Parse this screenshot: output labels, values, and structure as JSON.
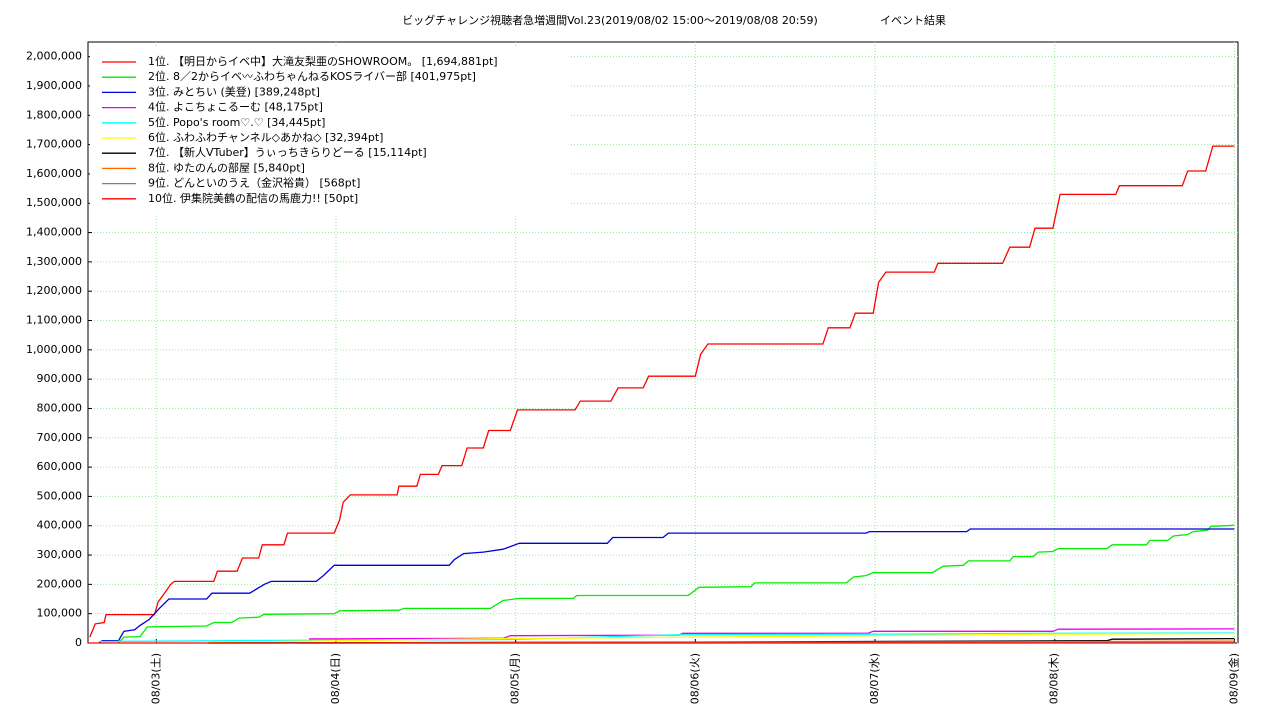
{
  "chart_data": {
    "type": "line",
    "title": "ビッグチャレンジ視聴者急増週間Vol.23(2019/08/02 15:00〜2019/08/08 20:59)",
    "subtitle": "イベント結果",
    "xlim": [
      2.62,
      9.02
    ],
    "xticks": [
      {
        "value": 3,
        "label": "08/03(土)"
      },
      {
        "value": 4,
        "label": "08/04(日)"
      },
      {
        "value": 5,
        "label": "08/05(月)"
      },
      {
        "value": 6,
        "label": "08/06(火)"
      },
      {
        "value": 7,
        "label": "08/07(水)"
      },
      {
        "value": 8,
        "label": "08/08(木)"
      },
      {
        "value": 9,
        "label": "08/09(金)"
      }
    ],
    "ylim": [
      0,
      2050000
    ],
    "yticks": [
      0,
      {
        "value": 100000,
        "label": "100,000"
      },
      {
        "value": 200000,
        "label": "200,000"
      },
      {
        "value": 300000,
        "label": "300,000"
      },
      {
        "value": 400000,
        "label": "400,000"
      },
      {
        "value": 500000,
        "label": "500,000"
      },
      {
        "value": 600000,
        "label": "600,000"
      },
      {
        "value": 700000,
        "label": "700,000"
      },
      {
        "value": 800000,
        "label": "800,000"
      },
      {
        "value": 900000,
        "label": "900,000"
      },
      {
        "value": 1000000,
        "label": "1,000,000"
      },
      {
        "value": 1100000,
        "label": "1,100,000"
      },
      {
        "value": 1200000,
        "label": "1,200,000"
      },
      {
        "value": 1300000,
        "label": "1,300,000"
      },
      {
        "value": 1400000,
        "label": "1,400,000"
      },
      {
        "value": 1500000,
        "label": "1,500,000"
      },
      {
        "value": 1600000,
        "label": "1,600,000"
      },
      {
        "value": 1700000,
        "label": "1,700,000"
      },
      {
        "value": 1800000,
        "label": "1,800,000"
      },
      {
        "value": 1900000,
        "label": "1,900,000"
      },
      {
        "value": 2000000,
        "label": "2,000,000"
      }
    ],
    "grid": true,
    "legend": "upper-left",
    "series": [
      {
        "name": "1位. 【明日からイベ中】大滝友梨亜のSHOWROOM。 [1,694,881pt]",
        "color": "#ff0000",
        "x": [
          2.63,
          2.66,
          2.71,
          2.72,
          2.99,
          3.01,
          3.04,
          3.08,
          3.1,
          3.32,
          3.34,
          3.45,
          3.48,
          3.57,
          3.59,
          3.71,
          3.73,
          3.99,
          4.02,
          4.04,
          4.08,
          4.34,
          4.35,
          4.45,
          4.47,
          4.57,
          4.59,
          4.7,
          4.73,
          4.82,
          4.85,
          4.97,
          5.01,
          5.33,
          5.36,
          5.53,
          5.57,
          5.71,
          5.74,
          6.0,
          6.03,
          6.07,
          6.71,
          6.74,
          6.86,
          6.89,
          6.99,
          7.02,
          7.06,
          7.33,
          7.35,
          7.71,
          7.75,
          7.86,
          7.89,
          7.99,
          8.03,
          8.34,
          8.36,
          8.71,
          8.74,
          8.84,
          8.88,
          9.0
        ],
        "values": [
          20000,
          65000,
          70000,
          97000,
          97000,
          140000,
          165000,
          200000,
          210000,
          210000,
          245000,
          245000,
          290000,
          290000,
          335000,
          335000,
          375000,
          375000,
          420000,
          480000,
          505000,
          505000,
          535000,
          535000,
          575000,
          575000,
          605000,
          605000,
          665000,
          665000,
          725000,
          725000,
          795000,
          795000,
          825000,
          825000,
          870000,
          870000,
          910000,
          910000,
          985000,
          1020000,
          1020000,
          1075000,
          1075000,
          1125000,
          1125000,
          1230000,
          1265000,
          1265000,
          1295000,
          1295000,
          1350000,
          1350000,
          1415000,
          1415000,
          1530000,
          1530000,
          1560000,
          1560000,
          1610000,
          1610000,
          1695000,
          1695000
        ]
      },
      {
        "name": "2位. 8／2からイベ〰ふわちゃんねるKOSライバー部 [401,975pt]",
        "color": "#00ee00",
        "x": [
          2.79,
          2.82,
          2.91,
          2.95,
          3.28,
          3.32,
          3.42,
          3.46,
          3.57,
          3.6,
          3.99,
          4.02,
          4.35,
          4.38,
          4.86,
          4.89,
          4.93,
          5.02,
          5.32,
          5.34,
          5.96,
          6.02,
          6.31,
          6.33,
          6.84,
          6.88,
          6.95,
          6.99,
          7.32,
          7.38,
          7.49,
          7.52,
          7.75,
          7.77,
          7.88,
          7.91,
          7.99,
          8.02,
          8.29,
          8.32,
          8.51,
          8.53,
          8.63,
          8.66,
          8.74,
          8.77,
          8.85,
          8.87,
          8.96,
          9.0
        ],
        "values": [
          0,
          20000,
          22000,
          55000,
          58000,
          70000,
          70000,
          85000,
          88000,
          98000,
          100000,
          110000,
          112000,
          118000,
          118000,
          130000,
          145000,
          152000,
          152000,
          162000,
          162000,
          190000,
          192000,
          205000,
          205000,
          225000,
          230000,
          240000,
          240000,
          262000,
          265000,
          280000,
          280000,
          295000,
          295000,
          310000,
          312000,
          322000,
          322000,
          335000,
          335000,
          350000,
          350000,
          365000,
          370000,
          380000,
          385000,
          398000,
          400000,
          402000
        ]
      },
      {
        "name": "3位. みとちい (美登) [389,248pt]",
        "color": "#0000dd",
        "x": [
          2.68,
          2.7,
          2.79,
          2.82,
          2.88,
          2.91,
          2.96,
          3.02,
          3.07,
          3.28,
          3.31,
          3.52,
          3.6,
          3.64,
          3.89,
          3.93,
          3.99,
          4.63,
          4.66,
          4.71,
          4.82,
          4.93,
          5.02,
          5.51,
          5.54,
          5.82,
          5.85,
          6.95,
          6.97,
          7.51,
          7.53,
          9.0
        ],
        "values": [
          0,
          8000,
          8000,
          40000,
          45000,
          60000,
          80000,
          120000,
          150000,
          150000,
          170000,
          170000,
          200000,
          210000,
          210000,
          230000,
          265000,
          265000,
          285000,
          305000,
          310000,
          320000,
          340000,
          340000,
          360000,
          360000,
          375000,
          375000,
          380000,
          380000,
          389000,
          389000
        ]
      },
      {
        "name": "4位. よこちょこるーむ [48,175pt]",
        "color": "#ee00ee",
        "x": [
          3.85,
          4.93,
          4.97,
          5.91,
          5.93,
          6.96,
          6.99,
          7.99,
          8.02,
          9.0
        ],
        "values": [
          14000,
          16000,
          25000,
          27000,
          33000,
          33000,
          40000,
          40000,
          47000,
          48000
        ]
      },
      {
        "name": "5位. Popo's room♡.♡ [34,445pt]",
        "color": "#00ffff",
        "x": [
          2.68,
          3.96,
          4.96,
          5.91,
          6.96,
          7.99,
          9.0
        ],
        "values": [
          5000,
          10000,
          12000,
          28000,
          30000,
          33000,
          34000
        ]
      },
      {
        "name": "6位. ふわふわチャンネル◇あかね◇ [32,394pt]",
        "color": "#ffff00",
        "x": [
          3.29,
          4.91,
          6.02,
          6.96,
          7.96,
          9.0
        ],
        "values": [
          2000,
          15000,
          20000,
          25000,
          30000,
          32000
        ]
      },
      {
        "name": "7位. 【新人VTuber】うぃっちきらりどーる [15,114pt]",
        "color": "#000000",
        "x": [
          3.29,
          6.02,
          8.29,
          8.32,
          9.0
        ],
        "values": [
          0,
          3000,
          8000,
          13000,
          15000
        ]
      },
      {
        "name": "8位. ゆたのんの部屋 [5,840pt]",
        "color": "#ff6600",
        "x": [
          3.79,
          6.96,
          9.0
        ],
        "values": [
          0,
          3000,
          6000
        ]
      },
      {
        "name": "9位. どんといのうえ（金沢裕貴） [568pt]",
        "color": "#808080",
        "x": [
          3.79,
          9.0
        ],
        "values": [
          0,
          568
        ]
      },
      {
        "name": "10位. 伊集院美鶴の配信の馬鹿力!! [50pt]",
        "color": "#ff0000",
        "x": [
          2.62,
          9.0
        ],
        "values": [
          0,
          50
        ]
      }
    ]
  }
}
